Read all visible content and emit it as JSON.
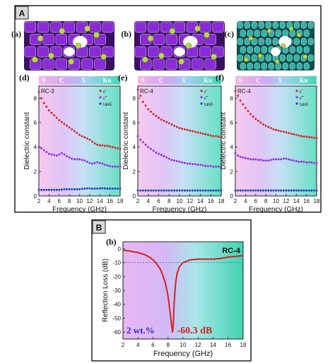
{
  "panel_A": {
    "label": "A",
    "cells": [
      {
        "label": "(a)",
        "style": "purple"
      },
      {
        "label": "(b)",
        "style": "purple"
      },
      {
        "label": "(c)",
        "style": "teal"
      }
    ],
    "band_labels": [
      "S",
      "C",
      "X",
      "Ku"
    ]
  },
  "panel_B": {
    "label": "B"
  },
  "colors": {
    "frame": "#111111",
    "purple_cell": "#8a2bd8",
    "purple_dark": "#3a1060",
    "teal_cell": "#2fb5a3",
    "teal_dark": "#0f4f4a",
    "ball": "#b8d84a",
    "eps_real": "#d62828",
    "eps_imag": "#9b30d9",
    "tan": "#2040c0",
    "rl": "#d62020",
    "gradient_pink": "#f0b8e8",
    "gradient_purple": "#c8a0f0",
    "gradient_teal": "#40d0b0"
  },
  "chart_data": [
    {
      "type": "line",
      "panel": "(d)",
      "inner_label": "RC-3",
      "xlabel": "Frequency (GHz)",
      "ylabel": "Dielectric constant",
      "xlim": [
        2,
        18
      ],
      "ylim": [
        0,
        9
      ],
      "xticks": [
        "2",
        "4",
        "6",
        "8",
        "10",
        "12",
        "14",
        "16",
        "18"
      ],
      "yticks": [
        "0",
        "2",
        "4",
        "6",
        "8"
      ],
      "legend": [
        "ε'",
        "ε''",
        "tanδ"
      ],
      "legend_position": "top-right",
      "x": [
        2,
        2.5,
        3,
        3.5,
        4,
        4.5,
        5,
        5.5,
        6,
        6.5,
        7,
        7.5,
        8,
        8.5,
        9,
        9.5,
        10,
        10.5,
        11,
        11.5,
        12,
        12.5,
        13,
        13.5,
        14,
        14.5,
        15,
        15.5,
        16,
        16.5,
        17,
        17.5,
        18
      ],
      "series": [
        {
          "name": "ε'",
          "values": [
            8.5,
            8.0,
            7.6,
            7.3,
            7.0,
            6.8,
            6.6,
            6.4,
            6.2,
            6.05,
            5.9,
            5.75,
            5.6,
            5.45,
            5.3,
            5.15,
            5.0,
            4.9,
            4.8,
            4.7,
            4.6,
            4.45,
            4.3,
            4.2,
            4.15,
            4.15,
            4.1,
            4.1,
            4.05,
            4.0,
            3.95,
            3.9,
            3.85
          ]
        },
        {
          "name": "ε''",
          "values": [
            4.0,
            3.9,
            3.75,
            3.6,
            3.45,
            3.4,
            3.35,
            3.3,
            3.4,
            3.5,
            3.4,
            3.25,
            3.15,
            3.05,
            3.0,
            3.0,
            3.0,
            2.95,
            2.9,
            2.8,
            2.7,
            2.65,
            2.7,
            2.75,
            2.7,
            2.65,
            2.55,
            2.5,
            2.45,
            2.4,
            2.4,
            2.4,
            2.4
          ]
        },
        {
          "name": "tanδ",
          "values": [
            0.5,
            0.5,
            0.5,
            0.5,
            0.5,
            0.5,
            0.5,
            0.5,
            0.5,
            0.52,
            0.55,
            0.55,
            0.55,
            0.55,
            0.55,
            0.55,
            0.55,
            0.58,
            0.6,
            0.62,
            0.62,
            0.6,
            0.6,
            0.6,
            0.62,
            0.62,
            0.62,
            0.6,
            0.6,
            0.6,
            0.6,
            0.6,
            0.6
          ]
        }
      ]
    },
    {
      "type": "line",
      "panel": "(e)",
      "inner_label": "RC-4",
      "xlabel": "Frequency (GHz)",
      "ylabel": "Dielectric constant",
      "xlim": [
        2,
        18
      ],
      "ylim": [
        0,
        9
      ],
      "xticks": [
        "2",
        "4",
        "6",
        "8",
        "10",
        "12",
        "14",
        "16",
        "18"
      ],
      "yticks": [
        "0",
        "2",
        "4",
        "6",
        "8"
      ],
      "legend": [
        "ε'",
        "ε''",
        "tanδ"
      ],
      "legend_position": "top-right",
      "x": [
        2,
        2.5,
        3,
        3.5,
        4,
        4.5,
        5,
        5.5,
        6,
        6.5,
        7,
        7.5,
        8,
        8.5,
        9,
        9.5,
        10,
        10.5,
        11,
        11.5,
        12,
        12.5,
        13,
        13.5,
        14,
        14.5,
        15,
        15.5,
        16,
        16.5,
        17,
        17.5,
        18
      ],
      "series": [
        {
          "name": "ε'",
          "values": [
            8.7,
            8.2,
            7.7,
            7.4,
            7.1,
            6.9,
            6.7,
            6.55,
            6.4,
            6.25,
            6.15,
            6.05,
            5.95,
            5.85,
            5.75,
            5.65,
            5.55,
            5.5,
            5.45,
            5.4,
            5.35,
            5.3,
            5.25,
            5.2,
            5.15,
            5.1,
            5.05,
            5.0,
            4.95,
            4.9,
            4.9,
            4.85,
            4.8
          ]
        },
        {
          "name": "ε''",
          "values": [
            4.9,
            4.6,
            4.4,
            4.2,
            4.0,
            3.85,
            3.7,
            3.55,
            3.45,
            3.35,
            3.25,
            3.15,
            3.05,
            2.95,
            2.9,
            2.85,
            2.8,
            2.75,
            2.7,
            2.65,
            2.65,
            2.6,
            2.6,
            2.55,
            2.55,
            2.5,
            2.45,
            2.45,
            2.45,
            2.4,
            2.4,
            2.4,
            2.35
          ]
        },
        {
          "name": "tanδ",
          "values": [
            0.45,
            0.45,
            0.45,
            0.45,
            0.45,
            0.45,
            0.45,
            0.45,
            0.45,
            0.45,
            0.45,
            0.45,
            0.45,
            0.45,
            0.45,
            0.45,
            0.45,
            0.45,
            0.45,
            0.45,
            0.45,
            0.45,
            0.45,
            0.45,
            0.45,
            0.45,
            0.45,
            0.45,
            0.45,
            0.45,
            0.45,
            0.45,
            0.45
          ]
        }
      ]
    },
    {
      "type": "line",
      "panel": "(f)",
      "inner_label": "RC-4",
      "xlabel": "Frequency (GHz)",
      "ylabel": "Dielectric constant",
      "xlim": [
        2,
        18
      ],
      "ylim": [
        0,
        9
      ],
      "xticks": [
        "2",
        "4",
        "6",
        "8",
        "10",
        "12",
        "14",
        "16",
        "18"
      ],
      "yticks": [
        "0",
        "2",
        "4",
        "6",
        "8"
      ],
      "legend": [
        "ε'",
        "ε''",
        "tanδ"
      ],
      "legend_position": "top-right",
      "x": [
        2,
        2.5,
        3,
        3.5,
        4,
        4.5,
        5,
        5.5,
        6,
        6.5,
        7,
        7.5,
        8,
        8.5,
        9,
        9.5,
        10,
        10.5,
        11,
        11.5,
        12,
        12.5,
        13,
        13.5,
        14,
        14.5,
        15,
        15.5,
        16,
        16.5,
        17,
        17.5,
        18
      ],
      "series": [
        {
          "name": "ε'",
          "values": [
            8.6,
            8.2,
            7.8,
            7.5,
            7.2,
            6.95,
            6.7,
            6.5,
            6.3,
            6.15,
            6.0,
            5.85,
            5.75,
            5.65,
            5.55,
            5.45,
            5.4,
            5.35,
            5.3,
            5.25,
            5.2,
            5.15,
            5.1,
            5.05,
            5.0,
            4.95,
            4.9,
            4.85,
            4.85,
            4.8,
            4.8,
            4.75,
            4.75
          ]
        },
        {
          "name": "ε''",
          "values": [
            3.5,
            3.3,
            3.2,
            3.15,
            3.1,
            3.05,
            3.0,
            3.0,
            3.0,
            2.95,
            2.95,
            2.9,
            2.9,
            2.9,
            2.95,
            3.0,
            3.0,
            3.0,
            3.0,
            3.05,
            3.05,
            3.0,
            2.95,
            2.9,
            2.85,
            2.8,
            2.8,
            2.8,
            2.75,
            2.75,
            2.75,
            2.7,
            2.7
          ]
        },
        {
          "name": "tanδ",
          "values": [
            0.45,
            0.45,
            0.45,
            0.45,
            0.45,
            0.45,
            0.45,
            0.45,
            0.45,
            0.45,
            0.45,
            0.45,
            0.45,
            0.45,
            0.45,
            0.45,
            0.45,
            0.45,
            0.45,
            0.45,
            0.45,
            0.45,
            0.45,
            0.45,
            0.45,
            0.45,
            0.45,
            0.45,
            0.45,
            0.45,
            0.45,
            0.45,
            0.45
          ]
        }
      ]
    },
    {
      "type": "line",
      "panel": "(b)",
      "inner_label": "RC-4",
      "xlabel": "Frequency (GHz)",
      "ylabel": "Reflection Loss (dB)",
      "xlim": [
        2,
        18
      ],
      "ylim": [
        -65,
        5
      ],
      "xticks": [
        "2",
        "4",
        "6",
        "8",
        "10",
        "12",
        "14",
        "16",
        "18"
      ],
      "yticks": [
        "0",
        "-10",
        "-20",
        "-30",
        "-40",
        "-50",
        "-60"
      ],
      "reference_line": -10,
      "annotations": [
        "2 wt.%",
        "-60.3 dB"
      ],
      "x": [
        2,
        3,
        4,
        5,
        5.5,
        6,
        6.5,
        7,
        7.3,
        7.6,
        7.9,
        8.1,
        8.3,
        8.5,
        8.6,
        8.7,
        8.8,
        9,
        9.2,
        9.5,
        10,
        11,
        12,
        13,
        14,
        15,
        16,
        17,
        18
      ],
      "series": [
        {
          "name": "RC-4",
          "values": [
            -1,
            -1.8,
            -2.8,
            -4.5,
            -6,
            -8,
            -11,
            -15,
            -19,
            -24,
            -31,
            -38,
            -47,
            -56,
            -60.3,
            -55,
            -40,
            -25,
            -18,
            -13,
            -10,
            -8,
            -7.5,
            -7.5,
            -7.5,
            -7,
            -6,
            -5.5,
            -5
          ]
        }
      ]
    }
  ]
}
